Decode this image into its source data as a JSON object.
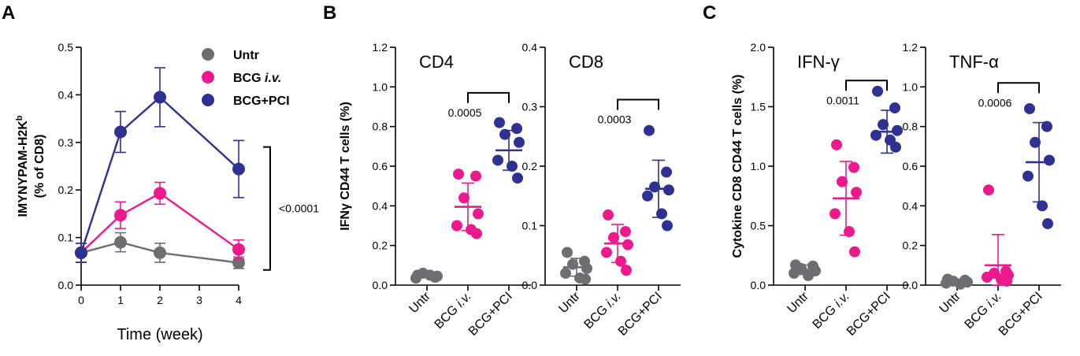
{
  "colors": {
    "untr": "#6d6e71",
    "bcg_iv": "#ec198c",
    "bcg_pci": "#2e3192"
  },
  "panel_labels": [
    "A",
    "B",
    "C"
  ],
  "chart_data": [
    {
      "id": "A",
      "type": "line",
      "xlabel": "Time (week)",
      "ylabel_line1": "IMYNYPAM-H2K",
      "ylabel_sup": "b",
      "ylabel_line2": "(% of CD8)",
      "xlim": [
        0,
        4
      ],
      "ylim": [
        0,
        0.5
      ],
      "xticks": [
        "0",
        "1",
        "2",
        "3",
        "4"
      ],
      "yticks": [
        "0.0",
        "0.1",
        "0.2",
        "0.3",
        "0.4",
        "0.5"
      ],
      "x": [
        0,
        1,
        2,
        4
      ],
      "legend_position": "top-right",
      "legend": [
        {
          "name": "Untr",
          "italic": ""
        },
        {
          "name": "BCG ",
          "italic": "i.v."
        },
        {
          "name": "BCG+PCI",
          "italic": ""
        }
      ],
      "series": [
        {
          "name": "Untr",
          "color_key": "untr",
          "values": [
            0.068,
            0.09,
            0.068,
            0.047
          ],
          "err": [
            0.02,
            0.02,
            0.02,
            0.012
          ]
        },
        {
          "name": "BCG i.v.",
          "color_key": "bcg_iv",
          "values": [
            0.068,
            0.147,
            0.193,
            0.075
          ],
          "err": [
            0.02,
            0.028,
            0.023,
            0.02
          ]
        },
        {
          "name": "BCG+PCI",
          "color_key": "bcg_pci",
          "values": [
            0.068,
            0.322,
            0.395,
            0.244
          ],
          "err": [
            0.02,
            0.043,
            0.062,
            0.06
          ]
        }
      ],
      "comparison": {
        "label": "<0.0001",
        "y_range": [
          0.075,
          0.244
        ],
        "x": 4
      }
    },
    {
      "id": "B-CD4",
      "type": "scatter",
      "title": "CD4",
      "ylabel": "IFNγ CD44 T cells (%)",
      "ylim": [
        0,
        1.2
      ],
      "yticks": [
        "0.0",
        "0.2",
        "0.4",
        "0.6",
        "0.8",
        "1.0",
        "1.2"
      ],
      "categories": [
        {
          "name": "Untr",
          "italic": ""
        },
        {
          "name": "BCG ",
          "italic": "i.v."
        },
        {
          "name": "BCG+PCI",
          "italic": ""
        }
      ],
      "groups": [
        {
          "color_key": "untr",
          "points": [
            0.05,
            0.04,
            0.06,
            0.045,
            0.035,
            0.05,
            0.04
          ],
          "mean": 0.045,
          "sd": 0.008
        },
        {
          "color_key": "bcg_iv",
          "points": [
            0.56,
            0.55,
            0.44,
            0.36,
            0.3,
            0.28,
            0.26
          ],
          "mean": 0.395,
          "sd": 0.12
        },
        {
          "color_key": "bcg_pci",
          "points": [
            0.82,
            0.79,
            0.76,
            0.72,
            0.63,
            0.6,
            0.54
          ],
          "mean": 0.68,
          "sd": 0.1
        }
      ],
      "comparison": {
        "label": "0.0005",
        "from": 1,
        "to": 2,
        "y": 0.97
      }
    },
    {
      "id": "B-CD8",
      "type": "scatter",
      "title": "CD8",
      "ylabel": "",
      "ylim": [
        0,
        0.4
      ],
      "yticks": [
        "0.0",
        "0.1",
        "0.2",
        "0.3",
        "0.4"
      ],
      "categories": [
        {
          "name": "Untr",
          "italic": ""
        },
        {
          "name": "BCG ",
          "italic": "i.v."
        },
        {
          "name": "BCG+PCI",
          "italic": ""
        }
      ],
      "groups": [
        {
          "color_key": "untr",
          "points": [
            0.055,
            0.04,
            0.035,
            0.028,
            0.02,
            0.012,
            0.01
          ],
          "mean": 0.03,
          "sd": 0.015
        },
        {
          "color_key": "bcg_iv",
          "points": [
            0.118,
            0.09,
            0.08,
            0.068,
            0.055,
            0.04,
            0.025
          ],
          "mean": 0.07,
          "sd": 0.032
        },
        {
          "color_key": "bcg_pci",
          "points": [
            0.26,
            0.19,
            0.165,
            0.16,
            0.15,
            0.12,
            0.1
          ],
          "mean": 0.162,
          "sd": 0.048
        }
      ],
      "comparison": {
        "label": "0.0003",
        "from": 1,
        "to": 2,
        "y": 0.312
      }
    },
    {
      "id": "C-IFN",
      "type": "scatter",
      "title": "IFN-γ",
      "ylabel": "Cytokine CD8 CD44 T cells (%)",
      "ylim": [
        0,
        2.0
      ],
      "yticks": [
        "0.0",
        "0.5",
        "1.0",
        "1.5",
        "2.0"
      ],
      "categories": [
        {
          "name": "Untr",
          "italic": ""
        },
        {
          "name": "BCG ",
          "italic": "i.v."
        },
        {
          "name": "BCG+PCI",
          "italic": ""
        }
      ],
      "groups": [
        {
          "color_key": "untr",
          "points": [
            0.17,
            0.16,
            0.14,
            0.12,
            0.1,
            0.08
          ],
          "mean": 0.13,
          "sd": 0.04
        },
        {
          "color_key": "bcg_iv",
          "points": [
            1.18,
            0.99,
            0.87,
            0.78,
            0.6,
            0.45,
            0.28
          ],
          "mean": 0.73,
          "sd": 0.31
        },
        {
          "color_key": "bcg_pci",
          "points": [
            1.63,
            1.49,
            1.35,
            1.3,
            1.26,
            1.22,
            1.16
          ],
          "mean": 1.29,
          "sd": 0.18
        }
      ],
      "comparison": {
        "label": "0.0011",
        "from": 1,
        "to": 2,
        "y": 1.72
      }
    },
    {
      "id": "C-TNF",
      "type": "scatter",
      "title": "TNF-α",
      "ylabel": "",
      "ylim": [
        0,
        1.2
      ],
      "yticks": [
        "0.0",
        "0.2",
        "0.4",
        "0.6",
        "0.8",
        "1.0",
        "1.2"
      ],
      "categories": [
        {
          "name": "Untr",
          "italic": ""
        },
        {
          "name": "BCG ",
          "italic": "i.v."
        },
        {
          "name": "BCG+PCI",
          "italic": ""
        }
      ],
      "groups": [
        {
          "color_key": "untr",
          "points": [
            0.03,
            0.025,
            0.02,
            0.015,
            0.01,
            0.005
          ],
          "mean": 0.02,
          "sd": 0.01
        },
        {
          "color_key": "bcg_iv",
          "points": [
            0.48,
            0.07,
            0.06,
            0.05,
            0.04,
            0.03,
            0.02
          ],
          "mean": 0.1,
          "sd": 0.155
        },
        {
          "color_key": "bcg_pci",
          "points": [
            0.89,
            0.8,
            0.72,
            0.63,
            0.55,
            0.4,
            0.31
          ],
          "mean": 0.62,
          "sd": 0.2
        }
      ],
      "comparison": {
        "label": "0.0006",
        "from": 1,
        "to": 2,
        "y": 1.02
      }
    }
  ]
}
